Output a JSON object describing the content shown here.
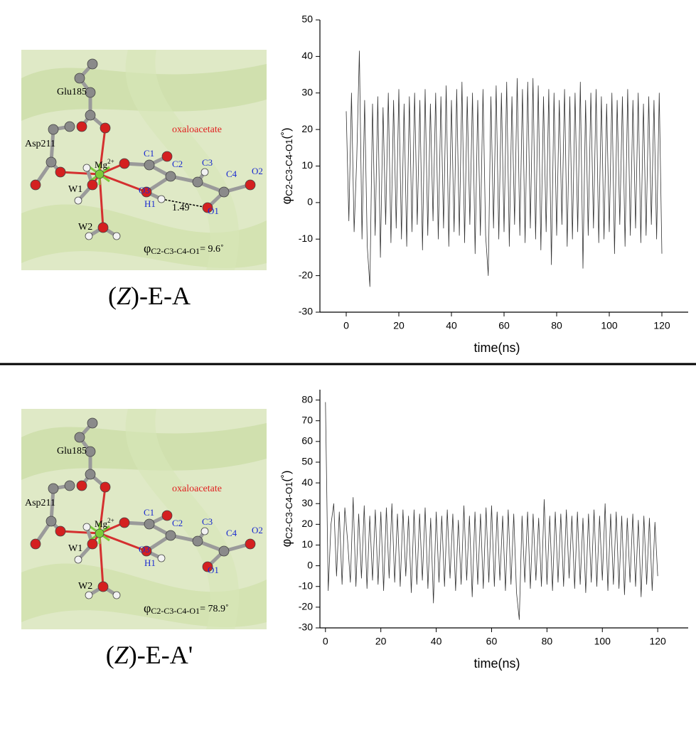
{
  "structures": [
    {
      "residues": [
        "Glu185",
        "Asp211"
      ],
      "metal": "Mg",
      "metal_charge": "2+",
      "waters": [
        "W1",
        "W2"
      ],
      "atoms": [
        "C1",
        "C2",
        "C3",
        "C4",
        "O1",
        "O2",
        "O3",
        "H1"
      ],
      "ligand": "oxaloacetate",
      "distance": "1.49",
      "dihedral": {
        "symbol": "φ",
        "sub": "C2-C3-C4-O1",
        "text": "= 9.6˚"
      },
      "caption": [
        "(",
        "Z",
        ")-E-A"
      ]
    },
    {
      "residues": [
        "Glu185",
        "Asp211"
      ],
      "metal": "Mg",
      "metal_charge": "2+",
      "waters": [
        "W1",
        "W2"
      ],
      "atoms": [
        "C1",
        "C2",
        "C3",
        "C4",
        "O1",
        "O2",
        "O3",
        "H1"
      ],
      "ligand": "oxaloacetate",
      "dihedral": {
        "symbol": "φ",
        "sub": "C2-C3-C4-O1",
        "text": "= 78.9˚"
      },
      "caption": [
        "(",
        "Z",
        ")-E-A'"
      ]
    }
  ],
  "chart_data": [
    {
      "type": "line",
      "x_label": "time(ns)",
      "y_label": {
        "symbol": "φ",
        "sub": "C2-C3-C4-O1",
        "unit": "(˚)"
      },
      "color": "#333333",
      "xlim": [
        -10,
        130
      ],
      "xticks": [
        0,
        20,
        40,
        60,
        80,
        100,
        120
      ],
      "ylim": [
        -30,
        50
      ],
      "yticks": [
        -30,
        -20,
        -10,
        0,
        10,
        20,
        30,
        40,
        50
      ],
      "x": [
        0,
        1,
        2,
        3,
        4,
        5,
        6,
        7,
        8,
        9,
        10,
        11,
        12,
        13,
        14,
        15,
        16,
        17,
        18,
        19,
        20,
        21,
        22,
        23,
        24,
        25,
        26,
        27,
        28,
        29,
        30,
        31,
        32,
        33,
        34,
        35,
        36,
        37,
        38,
        39,
        40,
        41,
        42,
        43,
        44,
        45,
        46,
        47,
        48,
        49,
        50,
        51,
        52,
        53,
        54,
        55,
        56,
        57,
        58,
        59,
        60,
        61,
        62,
        63,
        64,
        65,
        66,
        67,
        68,
        69,
        70,
        71,
        72,
        73,
        74,
        75,
        76,
        77,
        78,
        79,
        80,
        81,
        82,
        83,
        84,
        85,
        86,
        87,
        88,
        89,
        90,
        91,
        92,
        93,
        94,
        95,
        96,
        97,
        98,
        99,
        100,
        101,
        102,
        103,
        104,
        105,
        106,
        107,
        108,
        109,
        110,
        111,
        112,
        113,
        114,
        115,
        116,
        117,
        118,
        119,
        120
      ],
      "values": [
        25,
        -5,
        30,
        -8,
        12,
        41.5,
        -10,
        28,
        -12,
        -23,
        27,
        -9,
        29,
        -15,
        26,
        -6,
        30,
        -11,
        28,
        -7,
        31,
        -10,
        27,
        -12,
        29,
        -8,
        30,
        -6,
        28,
        -13,
        31,
        -9,
        27,
        -5,
        30,
        -10,
        29,
        -7,
        32,
        -12,
        28,
        -8,
        31,
        -9,
        33,
        -11,
        29,
        -6,
        30,
        -14,
        28,
        -9,
        31,
        -9,
        -20,
        29,
        -7,
        32,
        -10,
        30,
        -8,
        33,
        -12,
        29,
        -6,
        34,
        -9,
        31,
        -11,
        33,
        -7,
        34,
        -10,
        32,
        -13,
        29,
        -8,
        31,
        -17,
        30,
        -9,
        28,
        -6,
        31,
        -12,
        29,
        -10,
        30,
        -8,
        33,
        -18,
        28,
        -9,
        30,
        -7,
        31,
        -11,
        29,
        -10,
        27,
        -8,
        30,
        -14,
        28,
        -6,
        29,
        -12,
        31,
        -9,
        28,
        -7,
        30,
        -11,
        27,
        -9,
        29,
        -6,
        28,
        -10,
        30,
        -14
      ]
    },
    {
      "type": "line",
      "x_label": "time(ns)",
      "y_label": {
        "symbol": "φ",
        "sub": "C2-C3-C4-O1",
        "unit": "(˚)"
      },
      "color": "#333333",
      "xlim": [
        -2,
        131
      ],
      "xticks": [
        0,
        20,
        40,
        60,
        80,
        100,
        120
      ],
      "ylim": [
        -30,
        85
      ],
      "yticks": [
        -30,
        -20,
        -10,
        0,
        10,
        20,
        30,
        40,
        50,
        60,
        70,
        80
      ],
      "x": [
        0,
        1,
        2,
        3,
        4,
        5,
        6,
        7,
        8,
        9,
        10,
        11,
        12,
        13,
        14,
        15,
        16,
        17,
        18,
        19,
        20,
        21,
        22,
        23,
        24,
        25,
        26,
        27,
        28,
        29,
        30,
        31,
        32,
        33,
        34,
        35,
        36,
        37,
        38,
        39,
        40,
        41,
        42,
        43,
        44,
        45,
        46,
        47,
        48,
        49,
        50,
        51,
        52,
        53,
        54,
        55,
        56,
        57,
        58,
        59,
        60,
        61,
        62,
        63,
        64,
        65,
        66,
        67,
        68,
        69,
        70,
        71,
        72,
        73,
        74,
        75,
        76,
        77,
        78,
        79,
        80,
        81,
        82,
        83,
        84,
        85,
        86,
        87,
        88,
        89,
        90,
        91,
        92,
        93,
        94,
        95,
        96,
        97,
        98,
        99,
        100,
        101,
        102,
        103,
        104,
        105,
        106,
        107,
        108,
        109,
        110,
        111,
        112,
        113,
        114,
        115,
        116,
        117,
        118,
        119,
        120
      ],
      "values": [
        79,
        -12,
        20,
        30,
        -5,
        26,
        -9,
        28,
        12,
        -8,
        33,
        -10,
        25,
        -6,
        29,
        -11,
        24,
        -7,
        27,
        -9,
        26,
        -12,
        28,
        -6,
        30,
        -8,
        25,
        -10,
        27,
        -5,
        24,
        -13,
        27,
        -9,
        25,
        -7,
        28,
        -11,
        23,
        -18,
        26,
        -8,
        24,
        -10,
        27,
        -6,
        25,
        -12,
        22,
        -9,
        29,
        -7,
        24,
        -15,
        26,
        -9,
        25,
        -11,
        28,
        -8,
        29,
        -10,
        26,
        -7,
        24,
        -12,
        27,
        -9,
        25,
        -13,
        -26,
        24,
        -8,
        26,
        -11,
        25,
        -7,
        23,
        -10,
        32,
        -9,
        24,
        -12,
        26,
        -8,
        25,
        -10,
        27,
        -6,
        24,
        -11,
        26,
        -9,
        23,
        -13,
        25,
        -8,
        27,
        -10,
        24,
        -7,
        30,
        -12,
        25,
        -9,
        26,
        -11,
        24,
        -14,
        23,
        -8,
        25,
        -10,
        22,
        -15,
        24,
        -9,
        23,
        -12,
        21,
        -5
      ]
    }
  ]
}
